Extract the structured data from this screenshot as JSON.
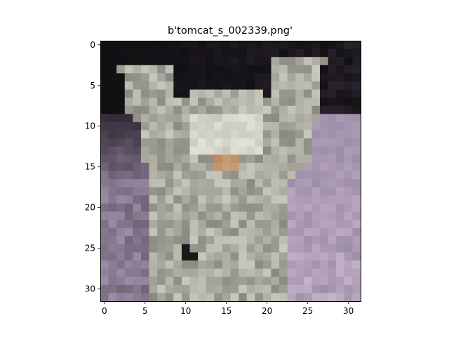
{
  "title": "b'tomcat_s_002339.png'",
  "image": {
    "description_free": true,
    "grid_size": 32,
    "palette": {
      "dark": "#121013",
      "dark_purple": "#2b2530",
      "fur_gray": "#8a8a80",
      "fur_light": "#c8c8bd",
      "fur_white": "#e3e3da",
      "nose_orange": "#c38859",
      "blanket_lavender": "#9e8da8",
      "blanket_pink": "#c8b7cc",
      "eye_dark": "#1b1a1b"
    }
  },
  "axes": {
    "x_ticks": [
      "0",
      "5",
      "10",
      "15",
      "20",
      "25",
      "30"
    ],
    "y_ticks": [
      "0",
      "5",
      "10",
      "15",
      "20",
      "25",
      "30"
    ],
    "x_tick_values": [
      0,
      5,
      10,
      15,
      20,
      25,
      30
    ],
    "y_tick_values": [
      0,
      5,
      10,
      15,
      20,
      25,
      30
    ],
    "xlim": [
      -0.5,
      31.5
    ],
    "ylim": [
      31.5,
      -0.5
    ]
  }
}
